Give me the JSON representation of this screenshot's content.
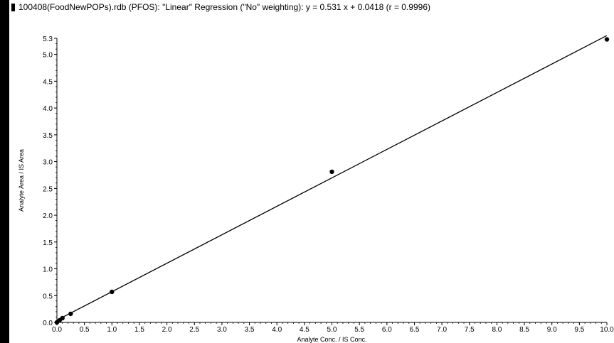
{
  "title": "100408(FoodNewPOPs).rdb (PFOS): \"Linear\" Regression (\"No\" weighting): y = 0.531 x + 0.0418 (r = 0.9996)",
  "chart_data": {
    "type": "scatter",
    "title": "100408(FoodNewPOPs).rdb (PFOS): \"Linear\" Regression (\"No\" weighting): y = 0.531 x + 0.0418 (r = 0.9996)",
    "xlabel": "Analyte Conc. / IS Conc.",
    "ylabel": "Analyte Area / IS Area",
    "xlim": [
      0,
      10
    ],
    "ylim": [
      0,
      5.3
    ],
    "x_ticks": [
      "0.0",
      "0.5",
      "1.0",
      "1.5",
      "2.0",
      "2.5",
      "3.0",
      "3.5",
      "4.0",
      "4.5",
      "5.0",
      "5.5",
      "6.0",
      "6.5",
      "7.0",
      "7.5",
      "8.0",
      "8.5",
      "9.0",
      "9.5",
      "10.0"
    ],
    "y_ticks": [
      "0.0",
      "0.5",
      "1.0",
      "1.5",
      "2.0",
      "2.5",
      "3.0",
      "3.5",
      "4.0",
      "4.5",
      "5.0",
      "5.3"
    ],
    "grid": false,
    "points": [
      {
        "x": 0.0,
        "y": 0.0
      },
      {
        "x": 0.05,
        "y": 0.04
      },
      {
        "x": 0.1,
        "y": 0.08
      },
      {
        "x": 0.25,
        "y": 0.16
      },
      {
        "x": 1.0,
        "y": 0.57
      },
      {
        "x": 5.0,
        "y": 2.81
      },
      {
        "x": 10.0,
        "y": 5.28
      }
    ],
    "regression": {
      "slope": 0.531,
      "intercept": 0.0418,
      "r": 0.9996,
      "x_range": [
        0,
        10
      ]
    }
  }
}
